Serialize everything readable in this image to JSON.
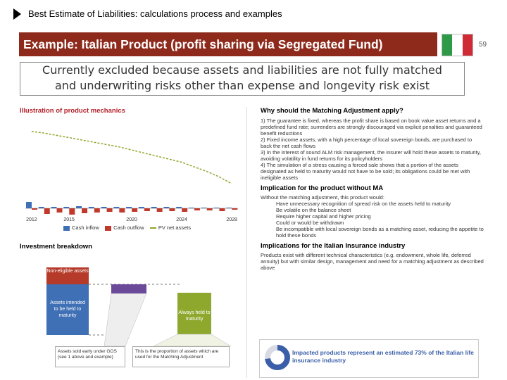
{
  "header": {
    "title": "Best Estimate of Liabilities: calculations process and examples"
  },
  "banner": {
    "text": "Example: Italian Product (profit sharing via Segregated Fund)"
  },
  "page_number": "59",
  "note": {
    "line1": "Currently excluded because assets and liabilities are not fully matched",
    "line2": "and underwriting risks other than expense and longevity risk exist"
  },
  "flag": {
    "colors": [
      "#2e9a48",
      "#ffffff",
      "#cf2b37"
    ]
  },
  "left_panel": {
    "product_title": "Illustration of product mechanics",
    "x_ticks": [
      "2012",
      "2015",
      "2020",
      "2024",
      "2028"
    ],
    "legend": [
      "Cash inflow",
      "Cash outflow",
      "PV net assets"
    ],
    "breakdown_title": "Investment breakdown",
    "boxes": {
      "non_eligible": "Non-eligible assets",
      "intended": "Assets intended to be held to maturity",
      "always_held": "Always held to maturity",
      "caption_left": "Assets sold early under GOS (see 1 above and example)",
      "caption_right": "This is the proportion of assets which are used for the Matching Adjustment"
    }
  },
  "right_panel": {
    "why_title": "Why should the Matching Adjustment apply?",
    "why_items": [
      "1) The guarantee is fixed, whereas the profit share is based on book value asset returns and a predefined fund rate; surrenders are strongly discouraged via explicit penalties and guaranteed benefit reductions",
      "2) Fixed income assets, with a high percentage of local sovereign bonds, are purchased to back the net cash flows",
      "3) In the interest of sound ALM risk management, the insurer will hold these assets to maturity, avoiding volatility in fund returns for its policyholders",
      "4) The simulation of a stress causing a forced sale shows that a portion of the assets designated as held to maturity would not have to be sold; its obligations could be met with ineligible assets"
    ],
    "impl_title": "Implication for the product without MA",
    "impl_lead": "Without the matching adjustment, this product would:",
    "impl_items": [
      "Have unnecessary recognition of spread risk on the assets held to maturity",
      "Be volatile on the balance sheet",
      "Require higher capital and higher pricing",
      "Could or would be withdrawn",
      "Be incompatible with local sovereign bonds as a matching asset, reducing the appetite to hold these bonds"
    ],
    "ind_title": "Implications for the Italian Insurance industry",
    "ind_item": "Products exist with different technical characteristics (e.g. endowment, whole life, deferred annuity) but with similar design, management and need for a matching adjustment as described above",
    "impact_text": "Impacted products represent an estimated 73% of the Italian life insurance industry",
    "impact_pct": 0.73,
    "impact_colors": [
      "#3a5fa8",
      "#d8dbe4"
    ]
  },
  "chart_data": {
    "type": "bar",
    "categories": [
      "2012",
      "2013",
      "2014",
      "2015",
      "2016",
      "2017",
      "2018",
      "2019",
      "2020",
      "2021",
      "2022",
      "2023",
      "2024",
      "2025",
      "2026",
      "2027",
      "2028"
    ],
    "series": [
      {
        "name": "Cash inflow",
        "values": [
          0.9,
          0.2,
          0.2,
          0.2,
          0.3,
          0.2,
          0.2,
          0.2,
          0.2,
          0.2,
          0.2,
          0.2,
          0.2,
          0.1,
          0.1,
          0.1,
          0.1
        ]
      },
      {
        "name": "Cash outflow",
        "values": [
          -0.2,
          -0.8,
          -0.6,
          -0.9,
          -0.7,
          -0.6,
          -0.5,
          -0.6,
          -0.5,
          -0.4,
          -0.5,
          -0.4,
          -0.5,
          -0.3,
          -0.3,
          -0.4,
          -0.2
        ]
      },
      {
        "name": "PV net assets",
        "values": [
          10,
          9.8,
          9.5,
          9.2,
          8.9,
          8.6,
          8.3,
          8.0,
          7.6,
          7.2,
          6.8,
          6.4,
          6.0,
          5.4,
          4.8,
          4.1,
          3.2
        ]
      }
    ],
    "colors": {
      "Cash inflow": "#3f6fb4",
      "Cash outflow": "#c0392b",
      "PV net assets": "#8ea82e"
    }
  }
}
